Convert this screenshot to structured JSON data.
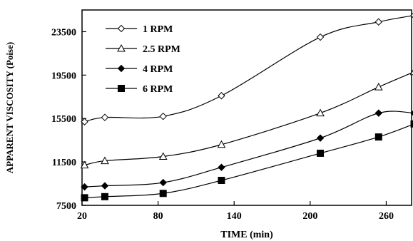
{
  "chart_data": {
    "type": "line",
    "xlabel": "TIME (min)",
    "ylabel": "APPARENT VISCOSITY (Poise)",
    "xlim": [
      20,
      280
    ],
    "ylim": [
      7500,
      25500
    ],
    "xticks": [
      20,
      80,
      140,
      200,
      260
    ],
    "xtick_labels": [
      "20",
      "80",
      "140",
      "200",
      "260"
    ],
    "yticks": [
      7500,
      11500,
      15500,
      19500,
      23500
    ],
    "ytick_labels": [
      "7500",
      "11500",
      "15500",
      "19500",
      "23500"
    ],
    "grid": false,
    "legend_position": "top-left",
    "series": [
      {
        "name": "1 RPM",
        "marker": "diamond-open",
        "x": [
          22,
          38,
          84,
          130,
          208,
          254,
          282
        ],
        "y": [
          15200,
          15600,
          15700,
          17600,
          23000,
          24400,
          25000
        ]
      },
      {
        "name": "2.5 RPM",
        "marker": "triangle-open",
        "x": [
          22,
          38,
          84,
          130,
          208,
          254,
          282
        ],
        "y": [
          11200,
          11600,
          12000,
          13100,
          16000,
          18400,
          19800
        ]
      },
      {
        "name": "4 RPM",
        "marker": "diamond-filled",
        "x": [
          22,
          38,
          84,
          130,
          208,
          254,
          282
        ],
        "y": [
          9200,
          9300,
          9600,
          11000,
          13700,
          16000,
          16000
        ]
      },
      {
        "name": "6 RPM",
        "marker": "square-filled",
        "x": [
          22,
          38,
          84,
          130,
          208,
          254,
          282
        ],
        "y": [
          8200,
          8300,
          8600,
          9800,
          12300,
          13800,
          15000
        ]
      }
    ]
  }
}
